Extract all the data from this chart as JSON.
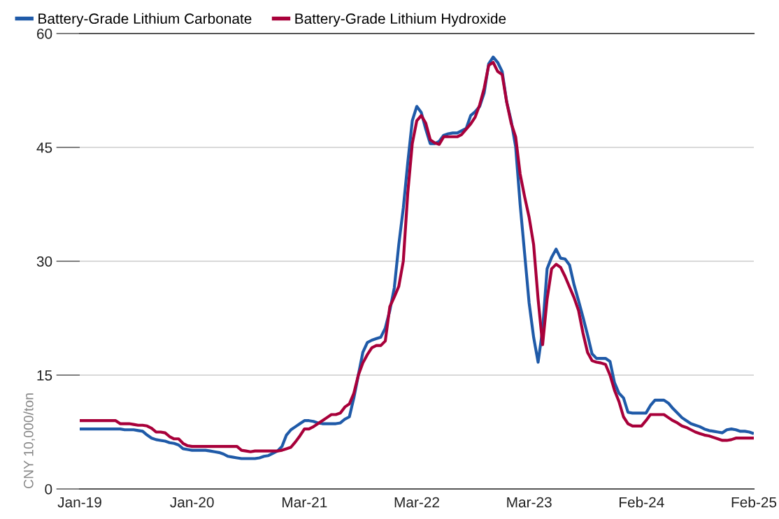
{
  "chart_data": {
    "type": "line",
    "ylabel": "CNY 10,000/ton",
    "categories": [
      "Jan-19",
      null,
      null,
      null,
      null,
      null,
      null,
      null,
      null,
      null,
      null,
      null,
      null,
      null,
      null,
      null,
      null,
      null,
      null,
      null,
      null,
      null,
      null,
      null,
      null,
      "Jan-20",
      null,
      null,
      null,
      null,
      null,
      null,
      null,
      null,
      null,
      null,
      null,
      null,
      null,
      null,
      null,
      null,
      null,
      null,
      null,
      null,
      null,
      null,
      null,
      null,
      "Mar-21",
      null,
      null,
      null,
      null,
      null,
      null,
      null,
      null,
      null,
      null,
      null,
      null,
      null,
      null,
      null,
      null,
      null,
      null,
      null,
      null,
      null,
      null,
      null,
      null,
      "Mar-22",
      null,
      null,
      null,
      null,
      null,
      null,
      null,
      null,
      null,
      null,
      null,
      null,
      null,
      null,
      null,
      null,
      null,
      null,
      null,
      null,
      null,
      null,
      null,
      null,
      "Mar-23",
      null,
      null,
      null,
      null,
      null,
      null,
      null,
      null,
      null,
      null,
      null,
      null,
      null,
      null,
      null,
      null,
      null,
      null,
      null,
      null,
      null,
      null,
      null,
      null,
      "Feb-24",
      null,
      null,
      null,
      null,
      null,
      null,
      null,
      null,
      null,
      null,
      null,
      null,
      null,
      null,
      null,
      null,
      null,
      null,
      null,
      null,
      null,
      null,
      null,
      null,
      "Feb-25"
    ],
    "series": [
      {
        "name": "Battery-Grade Lithium Carbonate",
        "color": "#1f5aa8",
        "values": [
          7.9,
          7.9,
          7.9,
          7.9,
          7.9,
          7.9,
          7.9,
          7.9,
          7.9,
          7.9,
          7.8,
          7.8,
          7.8,
          7.7,
          7.6,
          7.1,
          6.7,
          6.5,
          6.4,
          6.3,
          6.1,
          6.0,
          5.8,
          5.3,
          5.2,
          5.1,
          5.1,
          5.1,
          5.1,
          5.0,
          4.9,
          4.8,
          4.6,
          4.3,
          4.2,
          4.1,
          4.0,
          4.0,
          4.0,
          4.0,
          4.1,
          4.3,
          4.4,
          4.7,
          5.0,
          5.6,
          7.1,
          7.8,
          8.2,
          8.6,
          9.0,
          9.0,
          8.9,
          8.7,
          8.6,
          8.6,
          8.6,
          8.6,
          8.7,
          9.2,
          9.5,
          12.0,
          15.0,
          18.0,
          19.3,
          19.6,
          19.8,
          20.0,
          21.2,
          23.5,
          26.5,
          32.2,
          37.0,
          43.0,
          48.5,
          50.4,
          49.6,
          47.4,
          45.5,
          45.5,
          45.8,
          46.6,
          46.8,
          46.9,
          46.9,
          47.2,
          47.5,
          49.2,
          49.7,
          50.4,
          52.2,
          56.0,
          56.9,
          56.2,
          55.0,
          51.0,
          48.5,
          45.1,
          37.5,
          31.0,
          24.5,
          20.0,
          16.7,
          21.0,
          29.0,
          30.5,
          31.6,
          30.4,
          30.3,
          29.5,
          26.9,
          24.8,
          22.6,
          20.3,
          17.8,
          17.2,
          17.2,
          17.2,
          16.8,
          14.0,
          12.6,
          12.0,
          10.1,
          10.0,
          10.0,
          10.0,
          10.0,
          11.0,
          11.7,
          11.7,
          11.7,
          11.3,
          10.6,
          10.0,
          9.4,
          9.0,
          8.6,
          8.4,
          8.2,
          7.9,
          7.7,
          7.6,
          7.5,
          7.4,
          7.8,
          7.9,
          7.8,
          7.6,
          7.6,
          7.5,
          7.3
        ]
      },
      {
        "name": "Battery-Grade Lithium Hydroxide",
        "color": "#a8003a",
        "values": [
          9.0,
          9.0,
          9.0,
          9.0,
          9.0,
          9.0,
          9.0,
          9.0,
          9.0,
          8.6,
          8.6,
          8.6,
          8.5,
          8.4,
          8.4,
          8.3,
          8.0,
          7.5,
          7.5,
          7.4,
          6.9,
          6.6,
          6.6,
          6.0,
          5.7,
          5.6,
          5.6,
          5.6,
          5.6,
          5.6,
          5.6,
          5.6,
          5.6,
          5.6,
          5.6,
          5.6,
          5.1,
          5.0,
          4.9,
          5.0,
          5.0,
          5.0,
          5.0,
          5.0,
          5.0,
          5.1,
          5.3,
          5.5,
          6.2,
          7.0,
          7.9,
          7.9,
          8.2,
          8.6,
          9.0,
          9.4,
          9.8,
          9.8,
          10.0,
          10.8,
          11.2,
          12.6,
          15.0,
          16.6,
          17.7,
          18.6,
          18.9,
          18.9,
          19.5,
          24.0,
          25.3,
          26.7,
          30.0,
          39.0,
          45.5,
          48.5,
          49.2,
          48.2,
          46.0,
          45.6,
          45.4,
          46.4,
          46.4,
          46.4,
          46.4,
          46.7,
          47.4,
          48.1,
          49.0,
          50.6,
          52.8,
          55.8,
          56.2,
          55.0,
          54.6,
          51.0,
          48.2,
          46.4,
          41.5,
          38.5,
          35.8,
          32.2,
          25.0,
          19.0,
          25.0,
          29.0,
          29.6,
          29.2,
          28.0,
          26.6,
          25.2,
          23.5,
          20.5,
          18.0,
          16.9,
          16.7,
          16.6,
          16.4,
          15.0,
          13.0,
          11.5,
          9.5,
          8.6,
          8.3,
          8.3,
          8.3,
          9.0,
          9.8,
          9.8,
          9.8,
          9.8,
          9.4,
          9.0,
          8.7,
          8.3,
          8.1,
          7.8,
          7.5,
          7.3,
          7.1,
          7.0,
          6.8,
          6.6,
          6.4,
          6.4,
          6.5,
          6.7,
          6.7,
          6.7,
          6.7,
          6.7
        ]
      }
    ],
    "ylim": [
      0,
      60
    ],
    "yticks": [
      0,
      15,
      30,
      45,
      60
    ],
    "grid": "y",
    "legend": "top left",
    "marker": "none",
    "line_style": "solid"
  }
}
